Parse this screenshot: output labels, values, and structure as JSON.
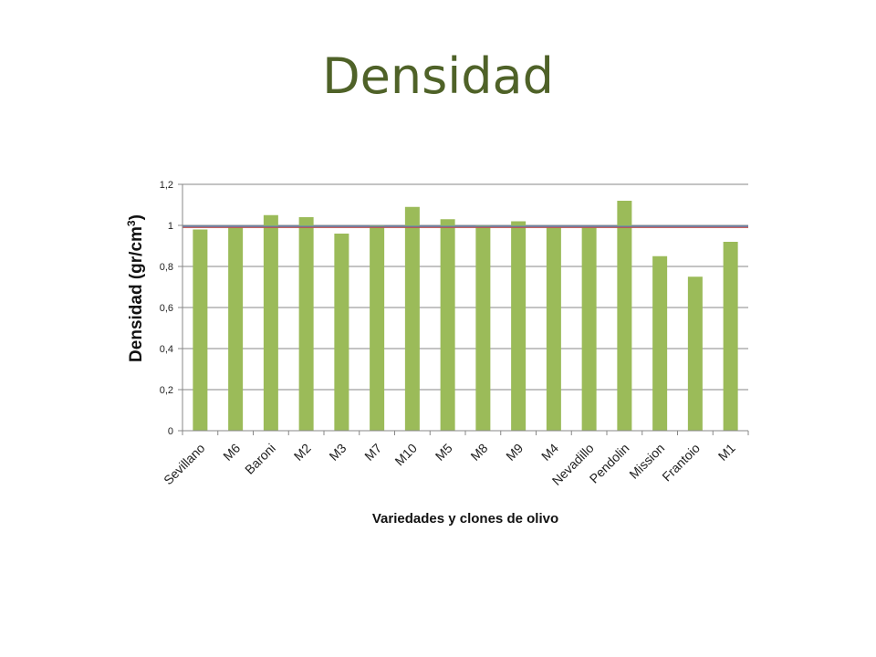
{
  "page": {
    "title": "Densidad"
  },
  "chart_data": {
    "type": "bar",
    "title": "",
    "ylabel": "Densidad (gr/cm",
    "ylabel_sup": "3",
    "ylabel_close": ")",
    "xlabel": "Variedades y clones de olivo",
    "categories": [
      "Sevillano",
      "M6",
      "Baroni",
      "M2",
      "M3",
      "M7",
      "M10",
      "M5",
      "M8",
      "M9",
      "M4",
      "Nevadillo",
      "Pendolin",
      "Mission",
      "Frantoio",
      "M1"
    ],
    "series": [
      {
        "values": [
          0.98,
          0.99,
          1.05,
          1.04,
          0.96,
          1.0,
          1.09,
          1.03,
          1.0,
          1.02,
          0.99,
          0.99,
          1.12,
          0.85,
          0.75,
          0.92
        ]
      }
    ],
    "ylim": [
      0,
      1.2
    ],
    "yticks": [
      "0",
      "0,2",
      "0,4",
      "0,6",
      "0,8",
      "1",
      "1,2"
    ],
    "ytick_values": [
      0,
      0.2,
      0.4,
      0.6,
      0.8,
      1.0,
      1.2
    ],
    "reference_lines": [
      {
        "value": 0.995,
        "color": "#4f81bd"
      },
      {
        "value": 0.99,
        "color": "#c0504d"
      }
    ],
    "grid": true,
    "legend": "none",
    "bar_color": "#9bbb59",
    "gridline_color": "#878787"
  }
}
